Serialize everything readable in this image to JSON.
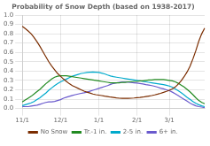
{
  "chart_data": {
    "type": "line",
    "title": "Probability of Snow Depth (based on 1938-2017)",
    "categories": [
      "11/1",
      null,
      null,
      null,
      null,
      null,
      null,
      null,
      null,
      null,
      null,
      null,
      null,
      "12/1",
      null,
      null,
      null,
      null,
      null,
      null,
      null,
      null,
      null,
      null,
      null,
      null,
      "1/1",
      null,
      null,
      null,
      null,
      null,
      null,
      null,
      null,
      null,
      null,
      null,
      null,
      "2/1",
      null,
      null,
      null,
      null,
      null,
      null,
      null,
      null,
      null,
      null,
      "3/1",
      null,
      null,
      null,
      null,
      null,
      null,
      null,
      null,
      null,
      null,
      null,
      null
    ],
    "series": [
      {
        "name": "No Snow",
        "color": "#7B2D00",
        "values": [
          0.88,
          0.855,
          0.83,
          0.8,
          0.76,
          0.715,
          0.665,
          0.61,
          0.555,
          0.5,
          0.455,
          0.415,
          0.375,
          0.345,
          0.315,
          0.29,
          0.265,
          0.245,
          0.23,
          0.215,
          0.2,
          0.185,
          0.175,
          0.165,
          0.155,
          0.148,
          0.143,
          0.138,
          0.132,
          0.128,
          0.122,
          0.118,
          0.113,
          0.11,
          0.108,
          0.108,
          0.108,
          0.11,
          0.112,
          0.115,
          0.118,
          0.122,
          0.128,
          0.133,
          0.138,
          0.145,
          0.153,
          0.162,
          0.172,
          0.183,
          0.195,
          0.21,
          0.23,
          0.26,
          0.295,
          0.34,
          0.39,
          0.45,
          0.53,
          0.62,
          0.72,
          0.8,
          0.86
        ]
      },
      {
        "name": "Tr.-1 in.",
        "color": "#228B22",
        "values": [
          0.07,
          0.09,
          0.11,
          0.13,
          0.155,
          0.18,
          0.205,
          0.235,
          0.265,
          0.29,
          0.315,
          0.335,
          0.345,
          0.35,
          0.35,
          0.35,
          0.345,
          0.34,
          0.335,
          0.33,
          0.325,
          0.32,
          0.315,
          0.31,
          0.305,
          0.3,
          0.295,
          0.29,
          0.285,
          0.28,
          0.275,
          0.275,
          0.275,
          0.275,
          0.28,
          0.28,
          0.285,
          0.285,
          0.29,
          0.29,
          0.295,
          0.295,
          0.3,
          0.305,
          0.305,
          0.31,
          0.31,
          0.31,
          0.31,
          0.305,
          0.3,
          0.295,
          0.285,
          0.27,
          0.25,
          0.23,
          0.205,
          0.178,
          0.148,
          0.115,
          0.085,
          0.065,
          0.05
        ]
      },
      {
        "name": "2-5 in.",
        "color": "#00AACC",
        "values": [
          0.03,
          0.04,
          0.05,
          0.06,
          0.075,
          0.095,
          0.115,
          0.14,
          0.165,
          0.195,
          0.22,
          0.245,
          0.265,
          0.285,
          0.3,
          0.315,
          0.33,
          0.345,
          0.355,
          0.365,
          0.375,
          0.38,
          0.385,
          0.388,
          0.39,
          0.388,
          0.385,
          0.378,
          0.37,
          0.358,
          0.348,
          0.34,
          0.335,
          0.33,
          0.325,
          0.32,
          0.315,
          0.31,
          0.305,
          0.3,
          0.295,
          0.29,
          0.285,
          0.28,
          0.275,
          0.27,
          0.265,
          0.26,
          0.255,
          0.248,
          0.24,
          0.228,
          0.21,
          0.19,
          0.168,
          0.145,
          0.12,
          0.098,
          0.075,
          0.055,
          0.04,
          0.028,
          0.02
        ]
      },
      {
        "name": "6+ in.",
        "color": "#6A5ACD",
        "values": [
          0.02,
          0.02,
          0.02,
          0.025,
          0.03,
          0.035,
          0.045,
          0.055,
          0.065,
          0.07,
          0.07,
          0.075,
          0.085,
          0.095,
          0.11,
          0.12,
          0.13,
          0.14,
          0.148,
          0.155,
          0.162,
          0.168,
          0.175,
          0.185,
          0.195,
          0.205,
          0.215,
          0.225,
          0.235,
          0.245,
          0.258,
          0.268,
          0.275,
          0.28,
          0.285,
          0.285,
          0.282,
          0.278,
          0.275,
          0.272,
          0.268,
          0.262,
          0.255,
          0.25,
          0.245,
          0.238,
          0.228,
          0.218,
          0.21,
          0.2,
          0.19,
          0.175,
          0.158,
          0.138,
          0.118,
          0.098,
          0.078,
          0.058,
          0.042,
          0.028,
          0.02,
          0.015,
          0.01
        ]
      }
    ],
    "ylim": [
      0.0,
      1.0
    ],
    "yticks": [
      {
        "value": 0.0,
        "label": "0.0"
      },
      0.1,
      0.2,
      0.3,
      0.4,
      0.5,
      0.6,
      0.7,
      0.8,
      0.9,
      {
        "value": 1.0,
        "label": "1.0"
      }
    ],
    "grid": true,
    "legend": "bottom"
  }
}
